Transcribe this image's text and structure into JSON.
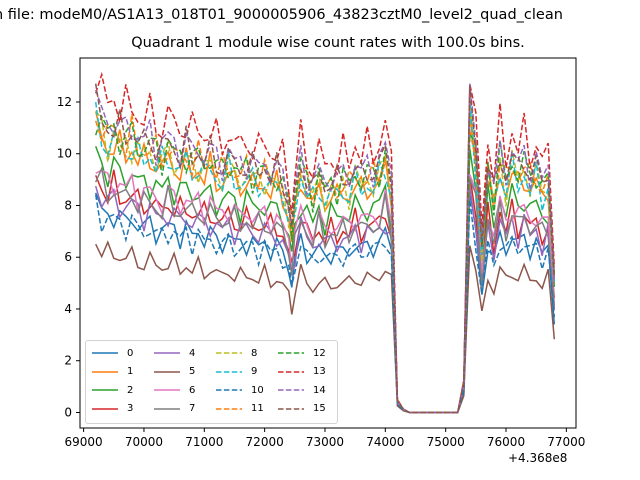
{
  "figure": {
    "suptitle": "n file: modeM0/AS1A13_018T01_9000005906_43823cztM0_level2_quad_clean",
    "title": "Quadrant 1 module wise count rates with 100.0s bins.",
    "offset_label": "+4.368e8"
  },
  "chart_data": {
    "type": "line",
    "title": "Quadrant 1 module wise count rates with 100.0s bins.",
    "xlabel": "",
    "ylabel": "",
    "x_offset": 436800000,
    "xlim": [
      68940,
      77160
    ],
    "ylim": [
      -0.6,
      13.7
    ],
    "x_ticks": [
      69000,
      70000,
      71000,
      72000,
      73000,
      74000,
      75000,
      76000,
      77000
    ],
    "y_ticks": [
      0,
      2,
      4,
      6,
      8,
      10,
      12
    ],
    "grid": false,
    "legend_placement": "lower-left",
    "legend_columns": 4,
    "x": [
      69200,
      69300,
      69400,
      69500,
      69600,
      69700,
      69800,
      69900,
      70000,
      70100,
      70200,
      70300,
      70400,
      70500,
      70600,
      70700,
      70800,
      70900,
      71000,
      71100,
      71200,
      71300,
      71400,
      71500,
      71600,
      71700,
      71800,
      71900,
      72000,
      72100,
      72200,
      72300,
      72400,
      72450,
      72500,
      72600,
      72700,
      72800,
      72900,
      73000,
      73100,
      73200,
      73300,
      73400,
      73500,
      73600,
      73700,
      73800,
      73900,
      74000,
      74100,
      74200,
      74300,
      74400,
      74500,
      74600,
      74700,
      74800,
      74900,
      75000,
      75100,
      75200,
      75300,
      75400,
      75500,
      75600,
      75700,
      75800,
      75900,
      76000,
      76100,
      76200,
      76300,
      76400,
      76500,
      76600,
      76700,
      76800
    ],
    "shape": [
      1.0,
      0.95,
      0.92,
      0.94,
      0.91,
      0.9,
      0.92,
      0.88,
      0.87,
      0.89,
      0.86,
      0.85,
      0.88,
      0.86,
      0.84,
      0.86,
      0.83,
      0.85,
      0.82,
      0.84,
      0.81,
      0.8,
      0.83,
      0.8,
      0.79,
      0.81,
      0.79,
      0.78,
      0.8,
      0.77,
      0.78,
      0.75,
      0.68,
      0.6,
      0.7,
      0.82,
      0.76,
      0.72,
      0.78,
      0.73,
      0.76,
      0.74,
      0.77,
      0.75,
      0.8,
      0.76,
      0.79,
      0.78,
      0.8,
      0.85,
      0.75,
      0.04,
      0.01,
      0.0,
      0.0,
      0.0,
      0.0,
      0.0,
      0.0,
      0.0,
      0.0,
      0.0,
      0.1,
      1.0,
      0.85,
      0.55,
      0.82,
      0.7,
      0.85,
      0.76,
      0.84,
      0.78,
      0.83,
      0.77,
      0.8,
      0.74,
      0.78,
      0.45
    ],
    "series": [
      {
        "name": "0",
        "color": "#1f77b4",
        "dash": "solid",
        "base": 8.2
      },
      {
        "name": "1",
        "color": "#ff7f0e",
        "dash": "solid",
        "base": 11.1
      },
      {
        "name": "2",
        "color": "#2ca02c",
        "dash": "solid",
        "base": 10.1
      },
      {
        "name": "3",
        "color": "#d62728",
        "dash": "solid",
        "base": 9.2
      },
      {
        "name": "4",
        "color": "#9467bd",
        "dash": "solid",
        "base": 8.8
      },
      {
        "name": "5",
        "color": "#8c564b",
        "dash": "solid",
        "base": 6.6
      },
      {
        "name": "6",
        "color": "#e377c2",
        "dash": "solid",
        "base": 9.6
      },
      {
        "name": "7",
        "color": "#7f7f7f",
        "dash": "solid",
        "base": 9.2
      },
      {
        "name": "8",
        "color": "#bcbd22",
        "dash": "dashed",
        "base": 11.4
      },
      {
        "name": "9",
        "color": "#17becf",
        "dash": "dashed",
        "base": 11.2
      },
      {
        "name": "10",
        "color": "#1f77b4",
        "dash": "dashed",
        "base": 8.0
      },
      {
        "name": "11",
        "color": "#ff7f0e",
        "dash": "dashed",
        "base": 11.6
      },
      {
        "name": "12",
        "color": "#2ca02c",
        "dash": "dashed",
        "base": 11.7
      },
      {
        "name": "13",
        "color": "#d62728",
        "dash": "dashed",
        "base": 13.0
      },
      {
        "name": "14",
        "color": "#9467bd",
        "dash": "dashed",
        "base": 12.1
      },
      {
        "name": "15",
        "color": "#8c564b",
        "dash": "dashed",
        "base": 11.9
      }
    ]
  }
}
